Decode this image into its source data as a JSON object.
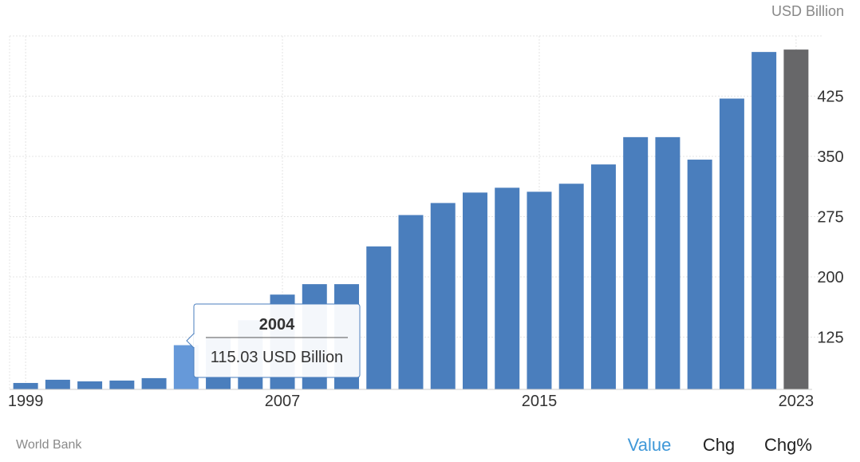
{
  "chart_data": {
    "type": "bar",
    "unit": "USD Billion",
    "source": "World Bank",
    "categories": [
      "1999",
      "2000",
      "2001",
      "2002",
      "2003",
      "2004",
      "2005",
      "2006",
      "2007",
      "2008",
      "2009",
      "2010",
      "2011",
      "2012",
      "2013",
      "2014",
      "2015",
      "2016",
      "2017",
      "2018",
      "2019",
      "2020",
      "2021",
      "2022",
      "2023"
    ],
    "values": [
      68,
      72,
      70,
      71,
      74,
      115.03,
      124,
      146,
      178,
      191,
      191,
      238,
      277,
      292,
      305,
      311,
      306,
      316,
      340,
      374,
      374,
      346,
      422,
      480,
      483
    ],
    "x_tick_labels": [
      "1999",
      "2007",
      "2015",
      "2023"
    ],
    "y_ticks": [
      125,
      200,
      275,
      350,
      425
    ],
    "ylim": [
      60,
      500
    ],
    "grid": true,
    "colors": {
      "bar": "#4a7ebd",
      "bar_highlight": "#6699d9",
      "bar_latest": "#676769",
      "active_tab": "#3f98d8",
      "tab": "#222222"
    },
    "highlighted_index": 5,
    "latest_index": 24
  },
  "tooltip": {
    "year": "2004",
    "value": "115.03 USD Billion"
  },
  "tabs": [
    {
      "label": "Value",
      "active": true
    },
    {
      "label": "Chg",
      "active": false
    },
    {
      "label": "Chg%",
      "active": false
    }
  ]
}
